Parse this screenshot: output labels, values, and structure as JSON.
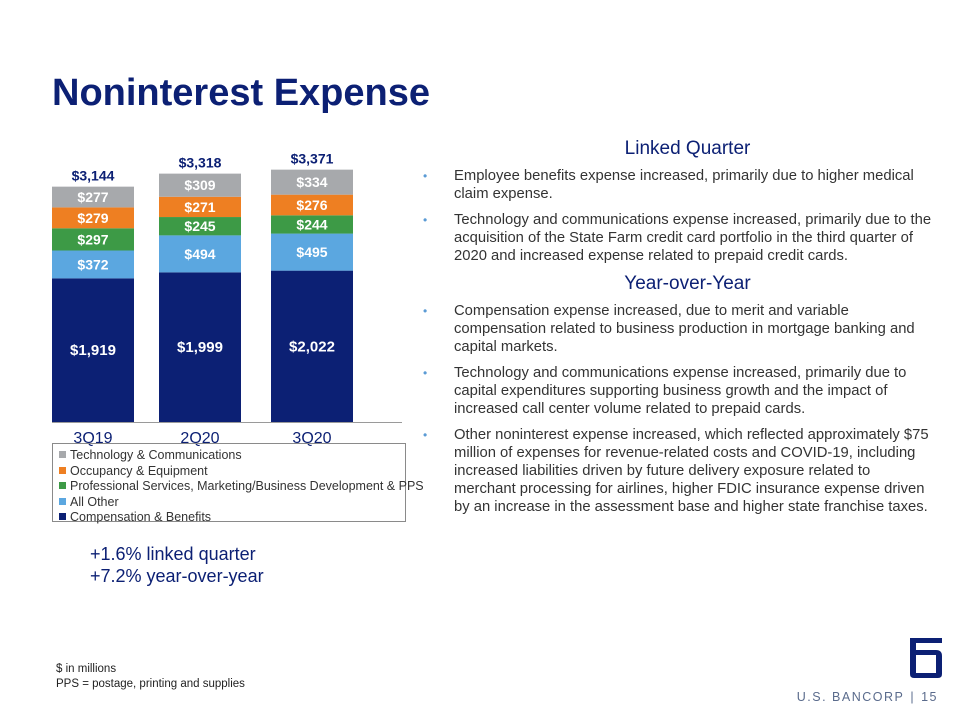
{
  "title": "Noninterest Expense",
  "chart_data": {
    "type": "bar",
    "stacked": true,
    "categories": [
      "3Q19",
      "2Q20",
      "3Q20"
    ],
    "series": [
      {
        "name": "Compensation & Benefits",
        "values": [
          1919,
          1999,
          2022
        ],
        "labels": [
          "$1,919",
          "$1,999",
          "$2,022"
        ],
        "color": "#0C2074"
      },
      {
        "name": "All Other",
        "values": [
          372,
          494,
          495
        ],
        "labels": [
          "$372",
          "$494",
          "$495"
        ],
        "color": "#5BA7E0"
      },
      {
        "name": "Professional Services, Marketing/Business Development & PPS",
        "values": [
          297,
          245,
          244
        ],
        "labels": [
          "$297",
          "$245",
          "$244"
        ],
        "color": "#3D9A46"
      },
      {
        "name": "Occupancy & Equipment",
        "values": [
          279,
          271,
          276
        ],
        "labels": [
          "$279",
          "$271",
          "$276"
        ],
        "color": "#EE7F22"
      },
      {
        "name": "Technology & Communications",
        "values": [
          277,
          309,
          334
        ],
        "labels": [
          "$277",
          "$309",
          "$334"
        ],
        "color": "#A7A9AC"
      }
    ],
    "totals": [
      "$3,144",
      "$3,318",
      "$3,371"
    ],
    "ylim": [
      0,
      3500
    ],
    "grid": false,
    "legend_placement": "bottom",
    "legend_order": [
      "Technology & Communications",
      "Occupancy & Equipment",
      "Professional Services, Marketing/Business Development & PPS",
      "All Other",
      "Compensation & Benefits"
    ]
  },
  "notes": [
    "+1.6% linked quarter",
    "+7.2% year-over-year"
  ],
  "linked_quarter": {
    "heading": "Linked Quarter",
    "bullets": [
      "Employee benefits expense increased, primarily due to higher medical claim expense.",
      "Technology and communications expense increased, primarily due to the acquisition of the State Farm credit card portfolio in the third quarter of 2020 and increased expense related to prepaid credit cards."
    ]
  },
  "year_over_year": {
    "heading": "Year-over-Year",
    "bullets": [
      "Compensation expense increased, due to merit and variable compensation related to business production in mortgage banking and capital markets.",
      "Technology and communications expense increased, primarily due to capital expenditures supporting business growth and the impact of increased call center volume related to prepaid cards.",
      "Other noninterest expense increased, which reflected approximately $75 million of expenses for revenue-related costs and COVID-19, including increased liabilities driven by future delivery exposure related to merchant processing for airlines, higher FDIC insurance expense driven by an increase in the assessment base and higher state franchise taxes."
    ]
  },
  "footnotes": [
    "$ in millions",
    "PPS = postage, printing and supplies"
  ],
  "brand": {
    "name": "U.S. BANCORP",
    "separator": "|",
    "page": "15",
    "logo_icon": "us-bancorp-shield-icon"
  },
  "colors": {
    "title": "#0C2074",
    "bullet": "#5b9bd5"
  }
}
